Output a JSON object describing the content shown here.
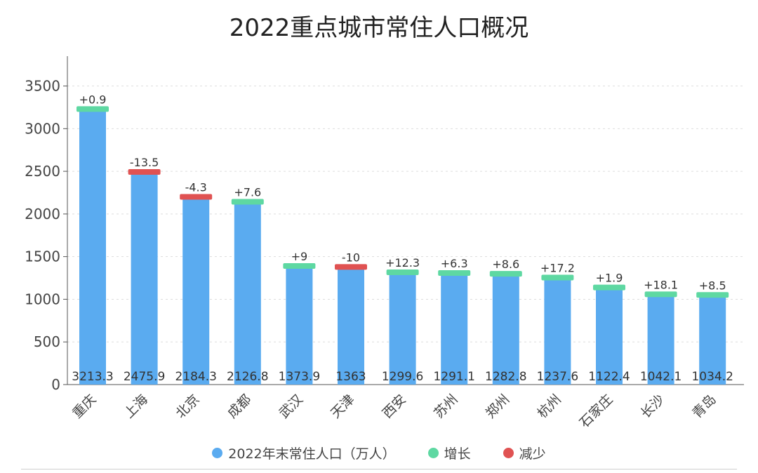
{
  "chart_data": {
    "type": "bar",
    "title": "2022重点城市常住人口概况",
    "categories": [
      "重庆",
      "上海",
      "北京",
      "成都",
      "武汉",
      "天津",
      "西安",
      "苏州",
      "郑州",
      "杭州",
      "石家庄",
      "长沙",
      "青岛"
    ],
    "series": [
      {
        "name": "2022年末常住人口（万人）",
        "values": [
          3213.3,
          2475.9,
          2184.3,
          2126.8,
          1373.9,
          1363,
          1299.6,
          1291.1,
          1282.8,
          1237.6,
          1122.4,
          1042.1,
          1034.2
        ]
      }
    ],
    "value_labels": [
      "3213.3",
      "2475.9",
      "2184.3",
      "2126.8",
      "1373.9",
      "1363",
      "1299.6",
      "1291.1",
      "1282.8",
      "1237.6",
      "1122.4",
      "1042.1",
      "1034.2"
    ],
    "changes": [
      0.9,
      -13.5,
      -4.3,
      7.6,
      9,
      -10,
      12.3,
      6.3,
      8.6,
      17.2,
      1.9,
      18.1,
      8.5
    ],
    "change_labels": [
      "+0.9",
      "-13.5",
      "-4.3",
      "+7.6",
      "+9",
      "-10",
      "+12.3",
      "+6.3",
      "+8.6",
      "+17.2",
      "+1.9",
      "+18.1",
      "+8.5"
    ],
    "yticks": [
      0,
      500,
      1000,
      1500,
      2000,
      2500,
      3000,
      3500
    ],
    "ylim": [
      0,
      3850
    ],
    "grid": true,
    "legend": {
      "position": "bottom",
      "items": [
        "2022年末常住人口（万人）",
        "增长",
        "减少"
      ]
    },
    "colors": {
      "bar": "#5aabf0",
      "increase": "#5ed8a2",
      "decrease": "#e05252",
      "grid": "#dddddd",
      "axis": "#555555"
    }
  }
}
